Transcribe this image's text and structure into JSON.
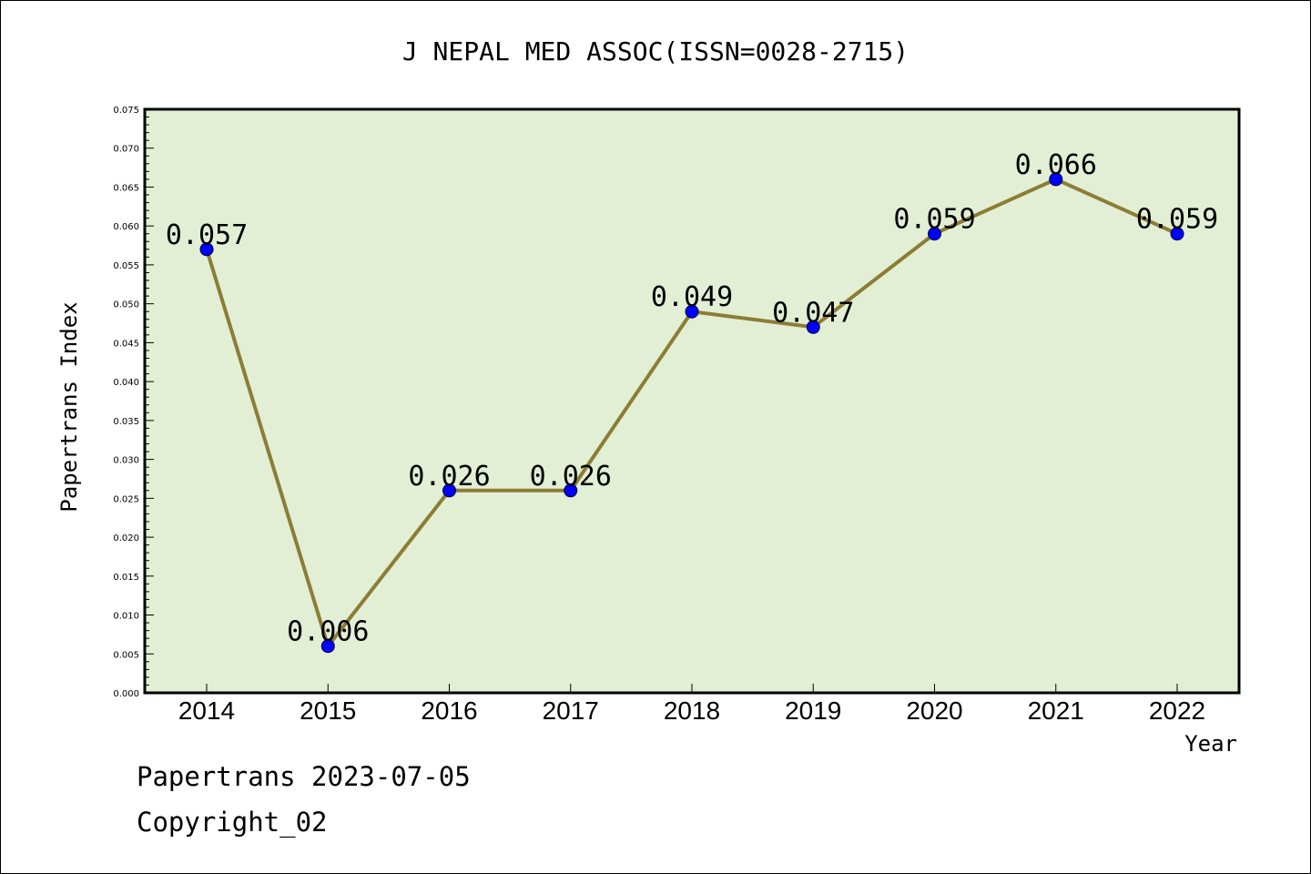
{
  "chart_data": {
    "type": "line",
    "title": "J NEPAL MED ASSOC(ISSN=0028-2715)",
    "xlabel": "Year",
    "ylabel": "Papertrans Index",
    "categories": [
      "2014",
      "2015",
      "2016",
      "2017",
      "2018",
      "2019",
      "2020",
      "2021",
      "2022"
    ],
    "values": [
      0.057,
      0.006,
      0.026,
      0.026,
      0.049,
      0.047,
      0.059,
      0.066,
      0.059
    ],
    "data_labels": [
      "0.057",
      "0.006",
      "0.026",
      "0.026",
      "0.049",
      "0.047",
      "0.059",
      "0.066",
      "0.059"
    ],
    "ylim": [
      0,
      0.075
    ],
    "y_ticks": [
      "0.000",
      "0.005",
      "0.010",
      "0.015",
      "0.020",
      "0.025",
      "0.030",
      "0.035",
      "0.040",
      "0.045",
      "0.050",
      "0.055",
      "0.060",
      "0.065",
      "0.070",
      "0.075"
    ],
    "grid": false,
    "colors": {
      "plot_background": "#e2efd5",
      "line": "#8b7d35",
      "marker": "#0000ff"
    }
  },
  "footer": {
    "line1": "Papertrans 2023-07-05",
    "line2": "Copyright_02"
  }
}
